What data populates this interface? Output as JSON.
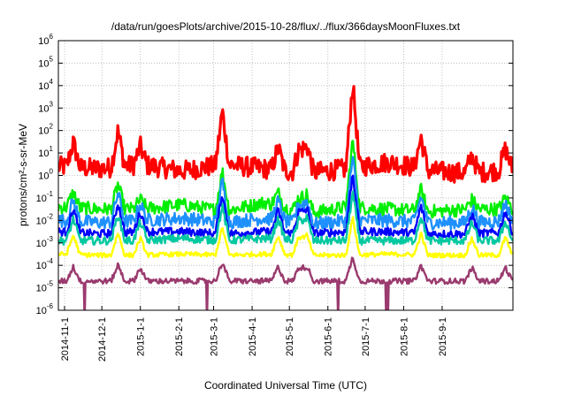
{
  "chart_data": {
    "type": "line",
    "title": "/data/run/goesPlots/archive/2015-10-28/flux/../flux/366daysMoonFluxes.txt",
    "xlabel": "Coordinated Universal Time (UTC)",
    "ylabel": "protons/cm²-s-sr-MeV",
    "y_scale": "log",
    "ylim_exponent": [
      -6,
      6
    ],
    "y_tick_exponents": [
      -6,
      -5,
      -4,
      -3,
      -2,
      -1,
      0,
      1,
      2,
      3,
      4,
      5,
      6
    ],
    "xlim": [
      "2014-10-27",
      "2015-10-28"
    ],
    "x_ticks": [
      "2014-11-1",
      "2014-12-1",
      "2015-1-1",
      "2015-2-1",
      "2015-3-1",
      "2015-4-1",
      "2015-5-1",
      "2015-6-1",
      "2015-7-1",
      "2015-8-1",
      "2015-9-1"
    ],
    "grid": true,
    "series": [
      {
        "color": "#ff0000",
        "baseline_log": 0.2,
        "noise": 0.45,
        "values_log": [
          0.4,
          0.3,
          0.5,
          0.2,
          0.5,
          0.3,
          0.1,
          0.3,
          0.6,
          0.2,
          0.1,
          0.3
        ]
      },
      {
        "color": "#00ee00",
        "baseline_log": -1.5,
        "noise": 0.3,
        "values_log": [
          -1.4,
          -1.5,
          -1.5,
          -1.3,
          -1.6,
          -1.2,
          -1.7,
          -1.4,
          -1.5,
          -1.6,
          -1.5,
          -1.5
        ]
      },
      {
        "color": "#1e90ff",
        "baseline_log": -2.0,
        "noise": 0.3,
        "values_log": [
          -2.0,
          -2.1,
          -2.0,
          -1.9,
          -2.1,
          -1.9,
          -2.2,
          -2.0,
          -2.0,
          -2.1,
          -2.1,
          -2.0
        ]
      },
      {
        "color": "#0000ff",
        "baseline_log": -2.5,
        "noise": 0.18,
        "values_log": [
          -2.5,
          -2.6,
          -2.5,
          -2.5,
          -2.6,
          -2.5,
          -2.6,
          -2.5,
          -2.5,
          -2.6,
          -2.6,
          -2.5
        ]
      },
      {
        "color": "#00c8a0",
        "baseline_log": -2.9,
        "noise": 0.18,
        "values_log": [
          -2.9,
          -2.9,
          -2.9,
          -2.8,
          -2.9,
          -2.8,
          -2.9,
          -2.9,
          -2.9,
          -2.9,
          -2.9,
          -2.9
        ]
      },
      {
        "color": "#ffff00",
        "baseline_log": -3.55,
        "noise": 0.1,
        "values_log": [
          -3.5,
          -3.55,
          -3.55,
          -3.5,
          -3.55,
          -3.5,
          -3.55,
          -3.55,
          -3.5,
          -3.55,
          -3.55,
          -3.55
        ]
      },
      {
        "color": "#9a3a6e",
        "baseline_log": -4.7,
        "noise": 0.12,
        "values_log": [
          -4.7,
          -4.7,
          -4.7,
          -4.7,
          -4.7,
          -4.7,
          -4.7,
          -4.7,
          -4.7,
          -4.7,
          -4.7,
          -4.7
        ]
      }
    ],
    "events": [
      {
        "date": "2014-11-8",
        "peak_log": 1.3
      },
      {
        "date": "2014-12-14",
        "peak_log": 1.8
      },
      {
        "date": "2015-1-1",
        "peak_log": 1.0
      },
      {
        "date": "2015-3-8",
        "peak_log": 2.6
      },
      {
        "date": "2015-4-22",
        "peak_log": 1.2
      },
      {
        "date": "2015-5-9",
        "peak_log": 1.3
      },
      {
        "date": "2015-5-15",
        "peak_log": 1.5
      },
      {
        "date": "2015-6-21",
        "peak_log": 4.0
      },
      {
        "date": "2015-8-15",
        "peak_log": 1.6
      },
      {
        "date": "2015-9-25",
        "peak_log": 1.0
      },
      {
        "date": "2015-10-22",
        "peak_log": 1.1
      }
    ]
  }
}
